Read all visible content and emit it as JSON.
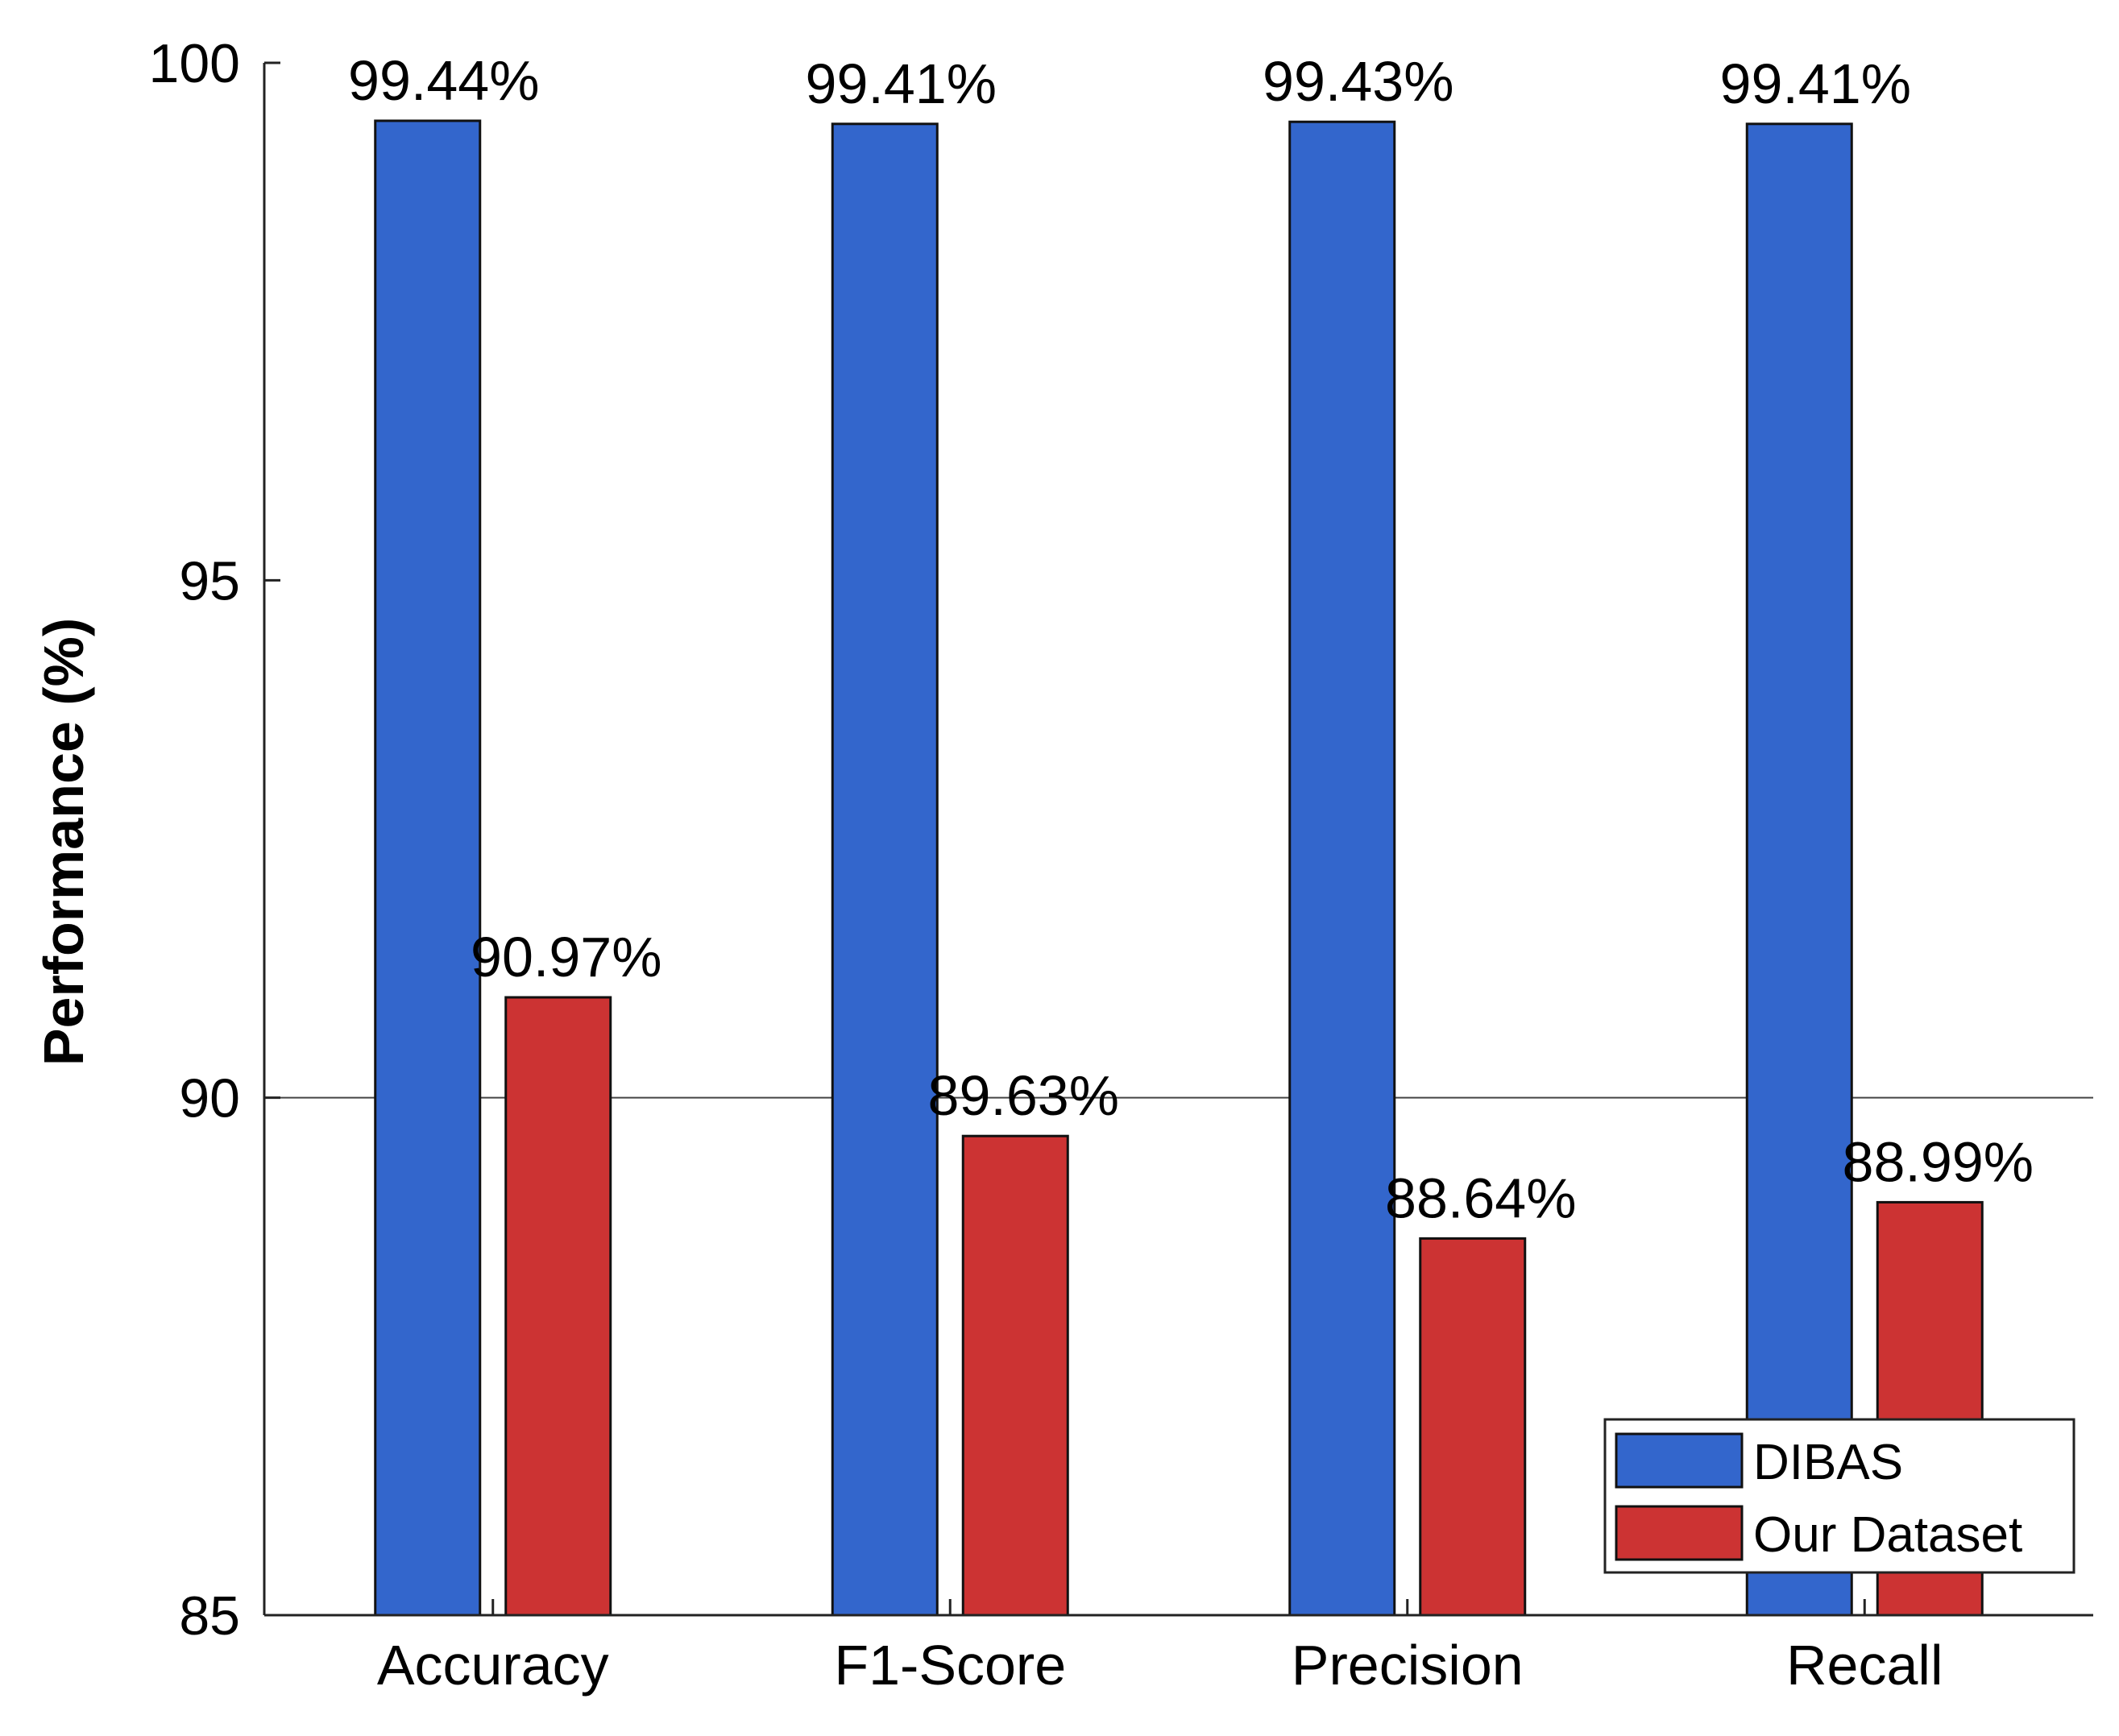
{
  "chart_data": {
    "type": "bar",
    "title": "",
    "xlabel": "",
    "ylabel": "Performance (%)",
    "ylim": [
      85,
      100
    ],
    "yticks": [
      85,
      90,
      95,
      100
    ],
    "categories": [
      "Accuracy",
      "F1-Score",
      "Precision",
      "Recall"
    ],
    "series": [
      {
        "name": "DIBAS",
        "color": "#3366cc",
        "values": [
          99.44,
          99.41,
          99.43,
          99.41
        ],
        "labels": [
          "99.44%",
          "99.41%",
          "99.43%",
          "99.41%"
        ]
      },
      {
        "name": "Our Dataset",
        "color": "#cc3333",
        "values": [
          90.97,
          89.63,
          88.64,
          88.99
        ],
        "labels": [
          "90.97%",
          "89.63%",
          "88.64%",
          "88.99%"
        ]
      }
    ],
    "reference_line": 90,
    "legend_position": "bottom-right"
  }
}
